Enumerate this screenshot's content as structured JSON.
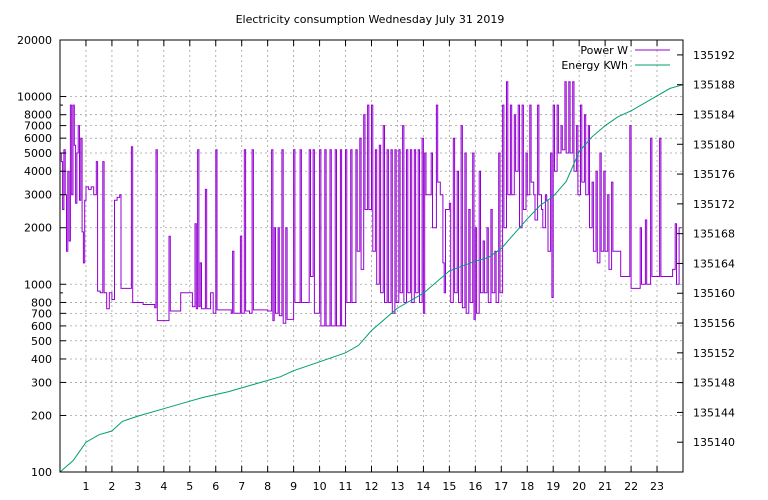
{
  "chart_data": {
    "type": "line",
    "title": "Electricity consumption Wednesday July 31 2019",
    "xlim": [
      0,
      24
    ],
    "x_ticks": [
      1,
      2,
      3,
      4,
      5,
      6,
      7,
      8,
      9,
      10,
      11,
      12,
      13,
      14,
      15,
      16,
      17,
      18,
      19,
      20,
      21,
      22,
      23
    ],
    "y_left": {
      "scale": "log",
      "lim": [
        100,
        20000
      ],
      "ticks": [
        100,
        200,
        300,
        400,
        500,
        600,
        700,
        800,
        1000,
        2000,
        3000,
        4000,
        5000,
        6000,
        7000,
        8000,
        10000,
        20000
      ]
    },
    "y_right": {
      "scale": "linear",
      "lim": [
        135136,
        135194
      ],
      "ticks": [
        135140,
        135144,
        135148,
        135152,
        135156,
        135160,
        135164,
        135168,
        135172,
        135176,
        135180,
        135184,
        135188,
        135192
      ]
    },
    "grid": true,
    "legend_position": "top-right",
    "series": [
      {
        "name": "Power W",
        "axis": "left",
        "color": "#9400d3",
        "points": [
          [
            0.0,
            5000
          ],
          [
            0.05,
            4500
          ],
          [
            0.1,
            2500
          ],
          [
            0.15,
            5200
          ],
          [
            0.2,
            3000
          ],
          [
            0.25,
            1500
          ],
          [
            0.3,
            4000
          ],
          [
            0.35,
            1700
          ],
          [
            0.4,
            9000
          ],
          [
            0.45,
            3000
          ],
          [
            0.5,
            9000
          ],
          [
            0.55,
            5500
          ],
          [
            0.6,
            2700
          ],
          [
            0.65,
            5000
          ],
          [
            0.7,
            7000
          ],
          [
            0.75,
            2800
          ],
          [
            0.8,
            6000
          ],
          [
            0.85,
            1900
          ],
          [
            0.9,
            1300
          ],
          [
            0.95,
            2800
          ],
          [
            1.0,
            3300
          ],
          [
            1.1,
            3200
          ],
          [
            1.2,
            3300
          ],
          [
            1.3,
            3000
          ],
          [
            1.4,
            4500
          ],
          [
            1.45,
            920
          ],
          [
            1.55,
            900
          ],
          [
            1.65,
            4500
          ],
          [
            1.7,
            900
          ],
          [
            1.8,
            740
          ],
          [
            1.9,
            900
          ],
          [
            2.0,
            830
          ],
          [
            2.1,
            2800
          ],
          [
            2.2,
            2900
          ],
          [
            2.3,
            3000
          ],
          [
            2.35,
            950
          ],
          [
            2.5,
            950
          ],
          [
            2.7,
            950
          ],
          [
            2.75,
            5400
          ],
          [
            2.8,
            800
          ],
          [
            3.0,
            800
          ],
          [
            3.2,
            780
          ],
          [
            3.5,
            780
          ],
          [
            3.65,
            750
          ],
          [
            3.7,
            5200
          ],
          [
            3.75,
            640
          ],
          [
            4.0,
            640
          ],
          [
            4.15,
            640
          ],
          [
            4.2,
            1800
          ],
          [
            4.25,
            720
          ],
          [
            4.5,
            720
          ],
          [
            4.65,
            900
          ],
          [
            5.0,
            900
          ],
          [
            5.1,
            760
          ],
          [
            5.2,
            2100
          ],
          [
            5.25,
            740
          ],
          [
            5.3,
            5200
          ],
          [
            5.35,
            760
          ],
          [
            5.4,
            1300
          ],
          [
            5.45,
            740
          ],
          [
            5.6,
            3200
          ],
          [
            5.65,
            740
          ],
          [
            5.8,
            900
          ],
          [
            5.9,
            700
          ],
          [
            6.0,
            5200
          ],
          [
            6.05,
            730
          ],
          [
            6.3,
            730
          ],
          [
            6.6,
            700
          ],
          [
            6.65,
            1500
          ],
          [
            6.7,
            700
          ],
          [
            6.9,
            700
          ],
          [
            6.95,
            1800
          ],
          [
            7.0,
            700
          ],
          [
            7.1,
            5200
          ],
          [
            7.15,
            720
          ],
          [
            7.3,
            700
          ],
          [
            7.4,
            5200
          ],
          [
            7.45,
            730
          ],
          [
            7.8,
            730
          ],
          [
            8.0,
            720
          ],
          [
            8.15,
            5200
          ],
          [
            8.2,
            640
          ],
          [
            8.25,
            2000
          ],
          [
            8.3,
            700
          ],
          [
            8.4,
            2000
          ],
          [
            8.45,
            680
          ],
          [
            8.55,
            5200
          ],
          [
            8.6,
            620
          ],
          [
            8.7,
            2000
          ],
          [
            8.75,
            650
          ],
          [
            9.0,
            5200
          ],
          [
            9.05,
            800
          ],
          [
            9.25,
            5200
          ],
          [
            9.3,
            800
          ],
          [
            9.5,
            800
          ],
          [
            9.6,
            5200
          ],
          [
            9.65,
            1100
          ],
          [
            9.75,
            5200
          ],
          [
            9.8,
            700
          ],
          [
            10.0,
            5200
          ],
          [
            10.05,
            600
          ],
          [
            10.2,
            5200
          ],
          [
            10.25,
            600
          ],
          [
            10.4,
            5200
          ],
          [
            10.45,
            600
          ],
          [
            10.6,
            5200
          ],
          [
            10.65,
            600
          ],
          [
            10.8,
            5200
          ],
          [
            10.85,
            600
          ],
          [
            11.0,
            5200
          ],
          [
            11.05,
            800
          ],
          [
            11.2,
            5200
          ],
          [
            11.25,
            800
          ],
          [
            11.4,
            5200
          ],
          [
            11.45,
            1500
          ],
          [
            11.55,
            6000
          ],
          [
            11.6,
            1200
          ],
          [
            11.7,
            8000
          ],
          [
            11.75,
            2500
          ],
          [
            11.85,
            9000
          ],
          [
            11.9,
            2500
          ],
          [
            12.0,
            9000
          ],
          [
            12.05,
            1500
          ],
          [
            12.15,
            5200
          ],
          [
            12.2,
            1000
          ],
          [
            12.3,
            5500
          ],
          [
            12.35,
            900
          ],
          [
            12.45,
            7000
          ],
          [
            12.5,
            800
          ],
          [
            12.6,
            5200
          ],
          [
            12.65,
            800
          ],
          [
            12.75,
            5200
          ],
          [
            12.8,
            700
          ],
          [
            12.9,
            5200
          ],
          [
            12.95,
            800
          ],
          [
            13.05,
            5200
          ],
          [
            13.1,
            900
          ],
          [
            13.2,
            7000
          ],
          [
            13.25,
            800
          ],
          [
            13.35,
            5200
          ],
          [
            13.4,
            900
          ],
          [
            13.5,
            5200
          ],
          [
            13.55,
            800
          ],
          [
            13.65,
            5200
          ],
          [
            13.7,
            900
          ],
          [
            13.8,
            5200
          ],
          [
            13.85,
            800
          ],
          [
            13.95,
            6000
          ],
          [
            14.0,
            700
          ],
          [
            14.05,
            5000
          ],
          [
            14.1,
            3000
          ],
          [
            14.2,
            3000
          ],
          [
            14.3,
            5000
          ],
          [
            14.35,
            2000
          ],
          [
            14.5,
            9000
          ],
          [
            14.55,
            3500
          ],
          [
            14.65,
            3000
          ],
          [
            14.75,
            1300
          ],
          [
            14.8,
            900
          ],
          [
            14.85,
            2500
          ],
          [
            15.0,
            2700
          ],
          [
            15.05,
            800
          ],
          [
            15.15,
            6000
          ],
          [
            15.2,
            900
          ],
          [
            15.3,
            4000
          ],
          [
            15.35,
            800
          ],
          [
            15.45,
            7000
          ],
          [
            15.5,
            750
          ],
          [
            15.6,
            5000
          ],
          [
            15.65,
            700
          ],
          [
            15.75,
            2500
          ],
          [
            15.8,
            800
          ],
          [
            15.9,
            5000
          ],
          [
            15.95,
            650
          ],
          [
            16.0,
            2000
          ],
          [
            16.05,
            700
          ],
          [
            16.15,
            4000
          ],
          [
            16.2,
            900
          ],
          [
            16.3,
            1700
          ],
          [
            16.35,
            900
          ],
          [
            16.45,
            2000
          ],
          [
            16.5,
            800
          ],
          [
            16.6,
            2500
          ],
          [
            16.65,
            900
          ],
          [
            16.75,
            1500
          ],
          [
            16.8,
            800
          ],
          [
            16.9,
            5000
          ],
          [
            16.95,
            900
          ],
          [
            17.05,
            9000
          ],
          [
            17.1,
            2000
          ],
          [
            17.2,
            12000
          ],
          [
            17.25,
            3000
          ],
          [
            17.35,
            9000
          ],
          [
            17.4,
            3000
          ],
          [
            17.5,
            8000
          ],
          [
            17.55,
            4000
          ],
          [
            17.65,
            9000
          ],
          [
            17.7,
            2000
          ],
          [
            17.8,
            9000
          ],
          [
            17.85,
            2500
          ],
          [
            17.95,
            5000
          ],
          [
            18.0,
            3000
          ],
          [
            18.1,
            9000
          ],
          [
            18.15,
            3500
          ],
          [
            18.25,
            3000
          ],
          [
            18.3,
            2200
          ],
          [
            18.4,
            9000
          ],
          [
            18.45,
            3000
          ],
          [
            18.55,
            2500
          ],
          [
            18.6,
            2000
          ],
          [
            18.7,
            3000
          ],
          [
            18.75,
            2800
          ],
          [
            18.8,
            1500
          ],
          [
            18.9,
            5000
          ],
          [
            18.95,
            850
          ],
          [
            19.0,
            9000
          ],
          [
            19.05,
            4000
          ],
          [
            19.15,
            9000
          ],
          [
            19.2,
            5000
          ],
          [
            19.3,
            7000
          ],
          [
            19.35,
            5200
          ],
          [
            19.45,
            12000
          ],
          [
            19.5,
            5000
          ],
          [
            19.6,
            12000
          ],
          [
            19.65,
            5000
          ],
          [
            19.75,
            12000
          ],
          [
            19.8,
            4000
          ],
          [
            19.9,
            7000
          ],
          [
            19.95,
            3000
          ],
          [
            20.05,
            9000
          ],
          [
            20.1,
            3500
          ],
          [
            20.2,
            8000
          ],
          [
            20.25,
            3000
          ],
          [
            20.35,
            7000
          ],
          [
            20.4,
            2000
          ],
          [
            20.5,
            3500
          ],
          [
            20.55,
            1500
          ],
          [
            20.65,
            4000
          ],
          [
            20.7,
            1300
          ],
          [
            20.8,
            5000
          ],
          [
            20.85,
            1500
          ],
          [
            20.95,
            4000
          ],
          [
            21.0,
            1500
          ],
          [
            21.1,
            3000
          ],
          [
            21.15,
            1200
          ],
          [
            21.25,
            3500
          ],
          [
            21.3,
            1500
          ],
          [
            21.4,
            1500
          ],
          [
            21.6,
            1100
          ],
          [
            21.8,
            1100
          ],
          [
            21.95,
            7000
          ],
          [
            22.0,
            950
          ],
          [
            22.2,
            950
          ],
          [
            22.35,
            2000
          ],
          [
            22.4,
            1000
          ],
          [
            22.55,
            2200
          ],
          [
            22.6,
            1000
          ],
          [
            22.75,
            6000
          ],
          [
            22.8,
            1100
          ],
          [
            23.0,
            1100
          ],
          [
            23.1,
            6000
          ],
          [
            23.15,
            1100
          ],
          [
            23.3,
            1100
          ],
          [
            23.5,
            1100
          ],
          [
            23.6,
            1200
          ],
          [
            23.7,
            2100
          ],
          [
            23.75,
            1000
          ],
          [
            23.85,
            2000
          ],
          [
            23.95,
            2000
          ]
        ]
      },
      {
        "name": "Energy KWh",
        "axis": "right",
        "color": "#009e73",
        "points": [
          [
            0.0,
            135136.0
          ],
          [
            0.5,
            135137.5
          ],
          [
            0.8,
            135139.0
          ],
          [
            1.0,
            135140.0
          ],
          [
            1.5,
            135141.0
          ],
          [
            2.0,
            135141.5
          ],
          [
            2.4,
            135142.8
          ],
          [
            3.0,
            135143.5
          ],
          [
            4.0,
            135144.5
          ],
          [
            5.0,
            135145.5
          ],
          [
            5.5,
            135146.0
          ],
          [
            6.5,
            135146.8
          ],
          [
            7.5,
            135147.8
          ],
          [
            8.5,
            135148.8
          ],
          [
            9.0,
            135149.6
          ],
          [
            10.0,
            135150.8
          ],
          [
            11.0,
            135152.0
          ],
          [
            11.5,
            135153.0
          ],
          [
            12.0,
            135155.0
          ],
          [
            13.0,
            135158.0
          ],
          [
            14.0,
            135160.0
          ],
          [
            15.0,
            135163.0
          ],
          [
            16.0,
            135164.3
          ],
          [
            16.5,
            135164.8
          ],
          [
            17.0,
            135166.0
          ],
          [
            17.5,
            135168.0
          ],
          [
            18.0,
            135170.0
          ],
          [
            18.5,
            135171.8
          ],
          [
            19.0,
            135173.0
          ],
          [
            19.5,
            135175.0
          ],
          [
            20.0,
            135179.0
          ],
          [
            20.5,
            135181.0
          ],
          [
            21.0,
            135182.5
          ],
          [
            21.5,
            135183.7
          ],
          [
            22.0,
            135184.5
          ],
          [
            22.5,
            135185.5
          ],
          [
            23.0,
            135186.5
          ],
          [
            23.5,
            135187.5
          ],
          [
            24.0,
            135188.0
          ]
        ]
      }
    ]
  }
}
